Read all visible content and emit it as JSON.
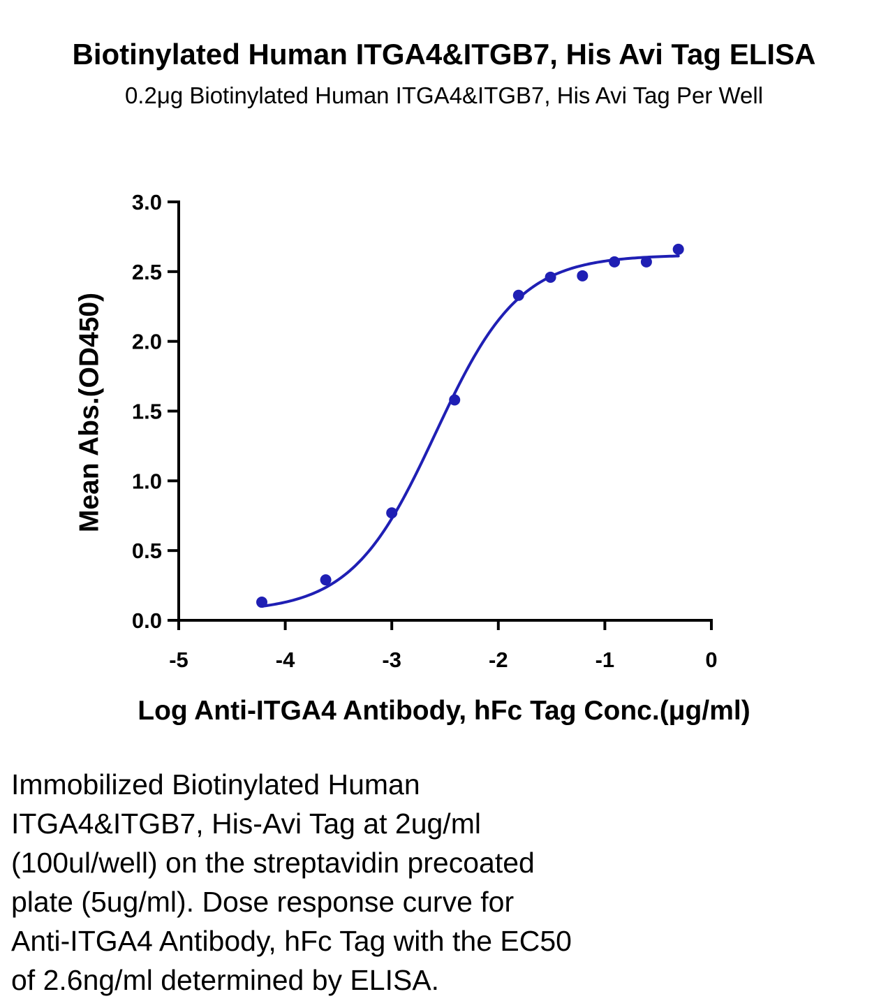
{
  "chart_data": {
    "type": "scatter",
    "title": "Biotinylated Human ITGA4&ITGB7, His Avi Tag ELISA",
    "subtitle": "0.2μg Biotinylated Human ITGA4&ITGB7, His Avi Tag Per Well",
    "xlabel": "Log Anti-ITGA4 Antibody, hFc Tag Conc.(μg/ml)",
    "ylabel": "Mean Abs.(OD450)",
    "xlim": [
      -5,
      0
    ],
    "ylim": [
      0,
      3.0
    ],
    "x_ticks": [
      "-5",
      "-4",
      "-3",
      "-2",
      "-1",
      "0"
    ],
    "y_ticks": [
      "0.0",
      "0.5",
      "1.0",
      "1.5",
      "2.0",
      "2.5",
      "3.0"
    ],
    "grid": false,
    "colors": {
      "series": "#1f1fb4",
      "axis": "#000000"
    },
    "series": [
      {
        "x": [
          -4.22,
          -3.62,
          -3.0,
          -2.41,
          -1.81,
          -1.51,
          -1.21,
          -0.91,
          -0.61,
          -0.31
        ],
        "y": [
          0.13,
          0.29,
          0.77,
          1.58,
          2.33,
          2.46,
          2.47,
          2.57,
          2.57,
          2.66
        ]
      }
    ],
    "fit_curve": {
      "model": "4PL",
      "bottom": 0.06,
      "top": 2.62,
      "log_ec50": -2.59,
      "hill_slope": 1.1,
      "x_range": [
        -4.22,
        -0.31
      ]
    },
    "caption": [
      "Immobilized Biotinylated Human",
      "ITGA4&ITGB7, His-Avi Tag at 2ug/ml",
      "(100ul/well) on the streptavidin precoated",
      "plate (5ug/ml). Dose response curve for",
      "Anti-ITGA4 Antibody, hFc Tag with the EC50",
      "of 2.6ng/ml determined by ELISA."
    ]
  }
}
